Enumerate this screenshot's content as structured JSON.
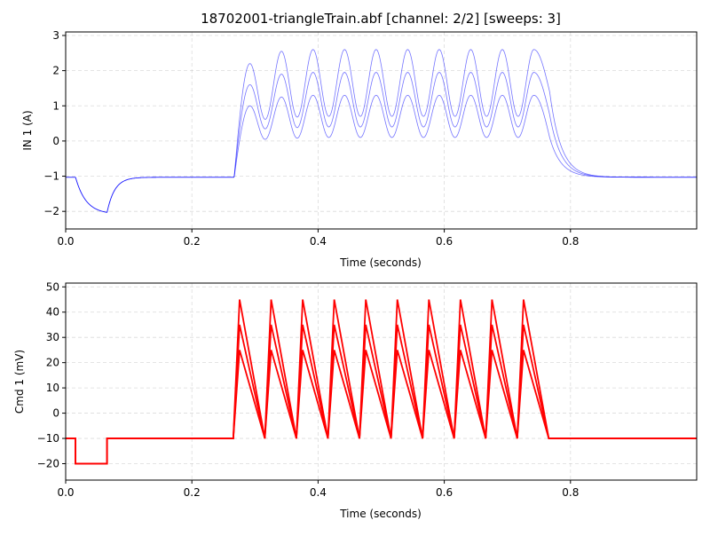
{
  "chart_data": [
    {
      "type": "line",
      "title": "18702001-triangleTrain.abf [channel: 2/2] [sweeps: 3]",
      "xlabel": "Time (seconds)",
      "ylabel": "IN 1 (A)",
      "xlim": [
        0,
        1.0
      ],
      "ylim": [
        -2.5,
        3.1
      ],
      "x_ticks": [
        0,
        0.2,
        0.4,
        0.6,
        0.8
      ],
      "x_tick_labels": [
        "0.0",
        "0.2",
        "0.4",
        "0.6",
        "0.8"
      ],
      "y_ticks": [
        -2,
        -1,
        0,
        1,
        2,
        3
      ],
      "y_tick_labels": [
        "−2",
        "−1",
        "0",
        "1",
        "2",
        "3"
      ],
      "grid": true,
      "line_color": "#0000ff",
      "series": [
        {
          "peaks": [
            1.0,
            1.25,
            1.3,
            1.3,
            1.3,
            1.3,
            1.3,
            1.3,
            1.3,
            1.3
          ],
          "troughs": [
            0.05,
            0.08,
            0.1,
            0.1,
            0.1,
            0.1,
            0.1,
            0.1,
            0.1
          ]
        },
        {
          "peaks": [
            1.6,
            1.9,
            1.95,
            1.95,
            1.95,
            1.95,
            1.95,
            1.95,
            1.95,
            1.95
          ],
          "troughs": [
            0.35,
            0.38,
            0.4,
            0.4,
            0.4,
            0.4,
            0.4,
            0.4,
            0.4
          ]
        },
        {
          "peaks": [
            2.2,
            2.55,
            2.6,
            2.6,
            2.6,
            2.6,
            2.6,
            2.6,
            2.6,
            2.6
          ],
          "troughs": [
            0.62,
            0.68,
            0.7,
            0.7,
            0.7,
            0.7,
            0.7,
            0.7,
            0.7
          ]
        }
      ],
      "baseline": -1.03,
      "dip_min": -2.03,
      "pulse_start": 0.267,
      "peak_times": [
        0.292,
        0.342,
        0.392,
        0.442,
        0.492,
        0.542,
        0.592,
        0.642,
        0.692,
        0.742
      ],
      "pulse_end": 0.767
    },
    {
      "type": "line",
      "xlabel": "Time (seconds)",
      "ylabel": "Cmd 1 (mV)",
      "xlim": [
        0,
        1.0
      ],
      "ylim": [
        -26.5,
        51.5
      ],
      "x_ticks": [
        0,
        0.2,
        0.4,
        0.6,
        0.8
      ],
      "x_tick_labels": [
        "0.0",
        "0.2",
        "0.4",
        "0.6",
        "0.8"
      ],
      "y_ticks": [
        -20,
        -10,
        0,
        10,
        20,
        30,
        40,
        50
      ],
      "y_tick_labels": [
        "−20",
        "−10",
        "0",
        "10",
        "20",
        "30",
        "40",
        "50"
      ],
      "grid": true,
      "line_color": "#ff0000",
      "holding": -10,
      "step_level": -20,
      "step_on": 0.0156,
      "step_off": 0.0656,
      "series": [
        {
          "peak": 25
        },
        {
          "peak": 35
        },
        {
          "peak": 45
        }
      ],
      "ramp_starts": [
        0.2656,
        0.3156,
        0.3656,
        0.4156,
        0.4656,
        0.5156,
        0.5656,
        0.6156,
        0.6656,
        0.7156
      ],
      "ramp_peak_offset": 0.01,
      "ramp_end": 0.7656
    }
  ]
}
